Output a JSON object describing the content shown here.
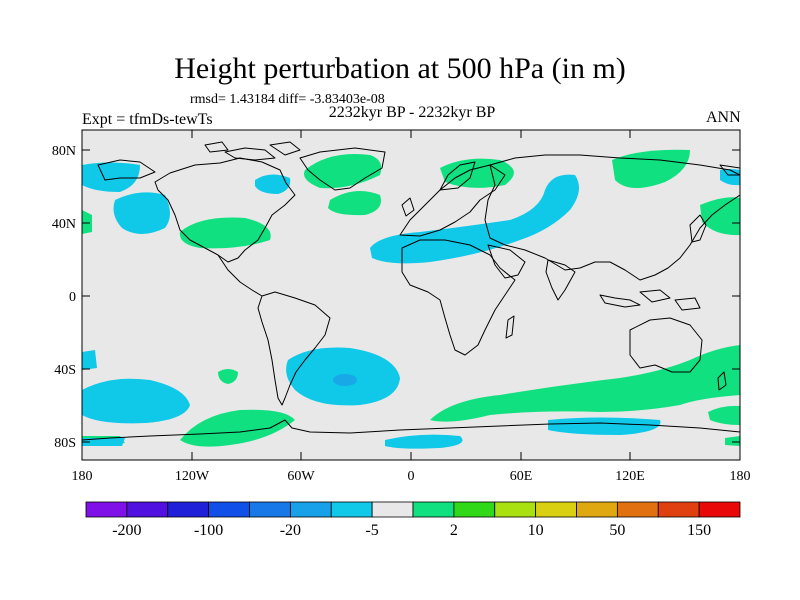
{
  "header": {
    "title": "Height perturbation at 500 hPa (in m)",
    "stats": "rmsd= 1.43184 diff= -3.83403e-08",
    "period": "2232kyr BP - 2232kyr BP",
    "experiment": "Expt = tfmDs-tewTs",
    "season": "ANN"
  },
  "map": {
    "lat_labels": [
      "80N",
      "40N",
      "0",
      "40S",
      "80S"
    ],
    "lon_labels": [
      "180",
      "120W",
      "60W",
      "0",
      "60E",
      "120E",
      "180"
    ],
    "background_color": "#e8e8e8",
    "positive_color": "#10e080",
    "negative_color": "#10c8e8",
    "deep_negative_color": "#18a8e8"
  },
  "colorbar": {
    "labels": [
      "-200",
      "-100",
      "-20",
      "-5",
      "2",
      "10",
      "50",
      "150"
    ],
    "colors": [
      "#8010e8",
      "#5010e0",
      "#2020d8",
      "#1050e8",
      "#1878e8",
      "#18a0e8",
      "#10c8e8",
      "#e8e8e8",
      "#10e080",
      "#30d818",
      "#a8e010",
      "#d8d010",
      "#e0a810",
      "#e07010",
      "#e04010",
      "#e80808"
    ]
  }
}
